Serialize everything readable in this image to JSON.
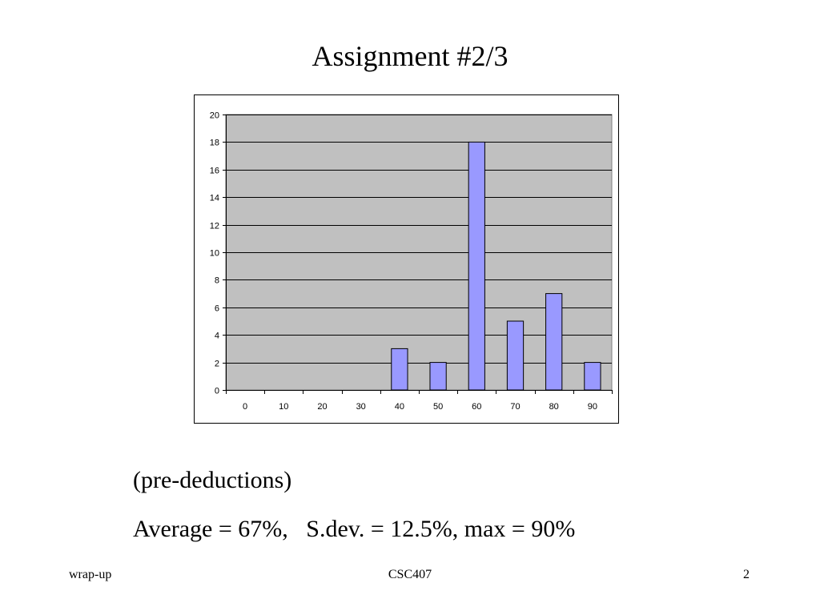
{
  "slide": {
    "title": "Assignment #2/3",
    "lines": [
      "(pre-deductions)",
      "Average = 67%,   S.dev. = 12.5%, max = 90%"
    ],
    "footer": {
      "left": "wrap-up",
      "center": "CSC407",
      "right": "2"
    }
  },
  "colors": {
    "plot_background": "#c0c0c0",
    "bar_fill": "#9999ff",
    "bar_stroke": "#000000",
    "gridline": "#000000"
  },
  "chart_data": {
    "type": "bar",
    "title": "",
    "xlabel": "",
    "ylabel": "",
    "categories": [
      "0",
      "10",
      "20",
      "30",
      "40",
      "50",
      "60",
      "70",
      "80",
      "90"
    ],
    "values": [
      0,
      0,
      0,
      0,
      3,
      2,
      18,
      5,
      7,
      2
    ],
    "ylim": [
      0,
      20
    ],
    "yticks": [
      0,
      2,
      4,
      6,
      8,
      10,
      12,
      14,
      16,
      18,
      20
    ],
    "grid": true,
    "legend": "none"
  }
}
